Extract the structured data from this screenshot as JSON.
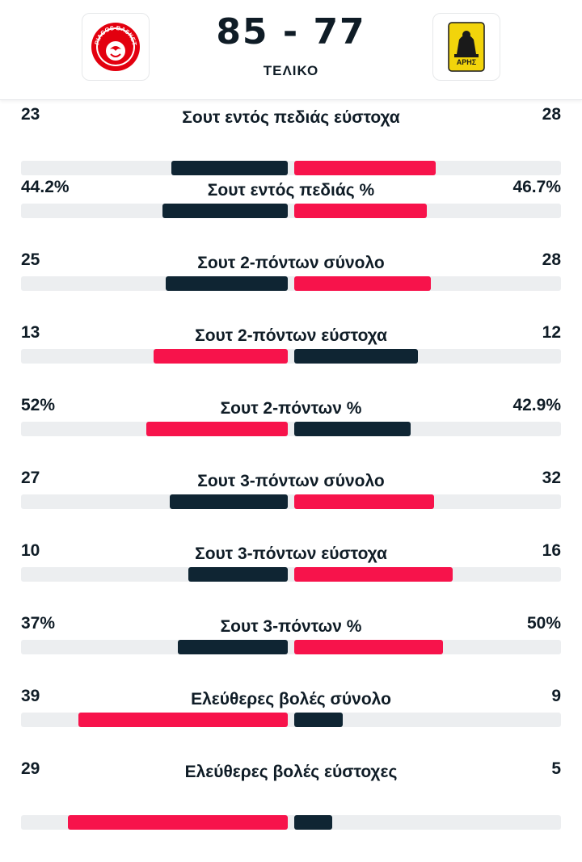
{
  "match": {
    "home_team_logo": "olympiacos-crest",
    "away_team_logo": "aris-crest",
    "home_logo_text": "OLYMPIACOS BASKETBALL",
    "away_logo_text": "ΑΡΗΣ",
    "score": "85 - 77",
    "status": "ΤΕΛΙΚΟ"
  },
  "colors": {
    "dark": "#0f2533",
    "red": "#f7134b",
    "track": "#eceef0",
    "aris_yellow": "#f2d40b"
  },
  "stats": [
    {
      "label": "Σουτ εντός πεδιάς εύστοχα",
      "home": "23",
      "away": "28",
      "home_fraction": 0.451,
      "away_fraction": 0.549,
      "leader": "away"
    },
    {
      "label": "Σουτ εντός πεδιάς %",
      "home": "44.2%",
      "away": "46.7%",
      "home_fraction": 0.486,
      "away_fraction": 0.514,
      "leader": "away"
    },
    {
      "label": "Σουτ 2-πόντων σύνολο",
      "home": "25",
      "away": "28",
      "home_fraction": 0.472,
      "away_fraction": 0.528,
      "leader": "away"
    },
    {
      "label": "Σουτ 2-πόντων εύστοχα",
      "home": "13",
      "away": "12",
      "home_fraction": 0.52,
      "away_fraction": 0.48,
      "leader": "home"
    },
    {
      "label": "Σουτ 2-πόντων %",
      "home": "52%",
      "away": "42.9%",
      "home_fraction": 0.548,
      "away_fraction": 0.452,
      "leader": "home"
    },
    {
      "label": "Σουτ 3-πόντων σύνολο",
      "home": "27",
      "away": "32",
      "home_fraction": 0.458,
      "away_fraction": 0.542,
      "leader": "away"
    },
    {
      "label": "Σουτ 3-πόντων εύστοχα",
      "home": "10",
      "away": "16",
      "home_fraction": 0.385,
      "away_fraction": 0.615,
      "leader": "away"
    },
    {
      "label": "Σουτ 3-πόντων %",
      "home": "37%",
      "away": "50%",
      "home_fraction": 0.425,
      "away_fraction": 0.575,
      "leader": "away"
    },
    {
      "label": "Ελεύθερες βολές σύνολο",
      "home": "39",
      "away": "9",
      "home_fraction": 0.8125,
      "away_fraction": 0.1875,
      "leader": "home"
    },
    {
      "label": "Ελεύθερες βολές εύστοχες",
      "home": "29",
      "away": "5",
      "home_fraction": 0.853,
      "away_fraction": 0.147,
      "leader": "home"
    }
  ]
}
